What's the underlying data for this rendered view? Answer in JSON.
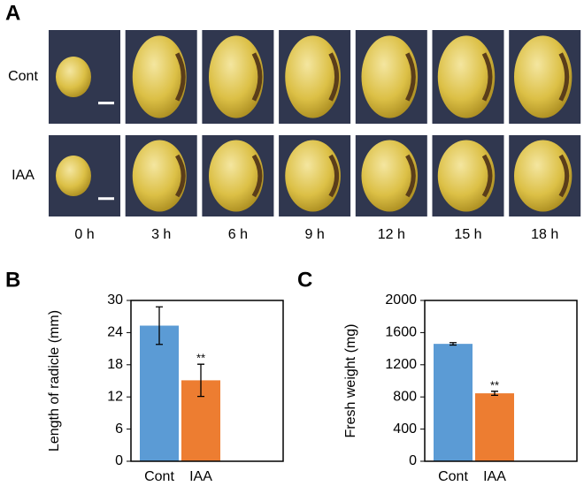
{
  "panel_a": {
    "label": "A",
    "rows": [
      "Cont",
      "IAA"
    ],
    "times": [
      "0 h",
      "3 h",
      "6 h",
      "9 h",
      "12 h",
      "15 h",
      "18 h"
    ]
  },
  "chart_data": [
    {
      "type": "bar",
      "panel": "B",
      "ylabel": "Length of radicle (mm)",
      "categories": [
        "Cont",
        "IAA"
      ],
      "values": [
        25.3,
        15.1
      ],
      "errors": [
        3.5,
        3.0
      ],
      "significance": [
        null,
        "**"
      ],
      "colors": [
        "#5b9bd5",
        "#ed7d31"
      ],
      "ylim": [
        0,
        30
      ],
      "yticks": [
        0,
        6,
        12,
        18,
        24,
        30
      ]
    },
    {
      "type": "bar",
      "panel": "C",
      "ylabel": "Fresh weight (mg)",
      "categories": [
        "Cont",
        "IAA"
      ],
      "values": [
        1460,
        845
      ],
      "errors": [
        15,
        25
      ],
      "significance": [
        null,
        "**"
      ],
      "colors": [
        "#5b9bd5",
        "#ed7d31"
      ],
      "ylim": [
        0,
        2000
      ],
      "yticks": [
        0,
        400,
        800,
        1200,
        1600,
        2000
      ]
    }
  ]
}
